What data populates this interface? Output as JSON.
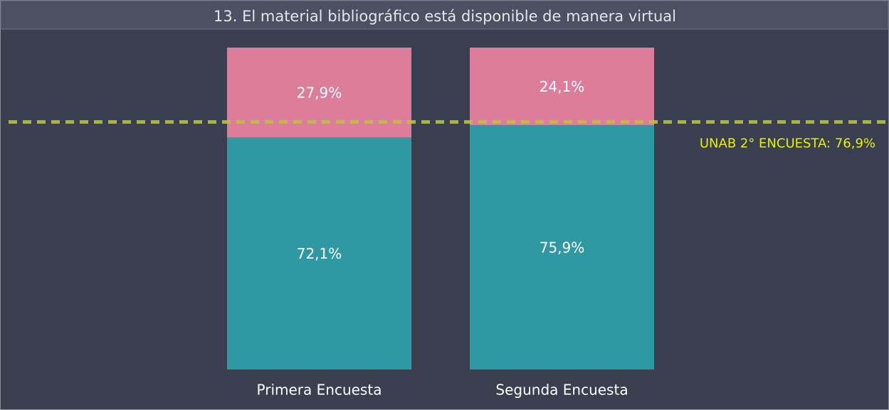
{
  "chart_data": {
    "type": "stacked-bar",
    "title": "13. El material bibliográfico está disponible de manera virtual",
    "categories": [
      "Primera Encuesta",
      "Segunda Encuesta"
    ],
    "series": [
      {
        "color": "#3098a3",
        "values": [
          72.1,
          75.9
        ],
        "value_labels": [
          "72,1%",
          "75,9%"
        ]
      },
      {
        "color": "#dc7d9c",
        "values": [
          27.9,
          24.1
        ],
        "value_labels": [
          "27,9%",
          "24,1%"
        ]
      }
    ],
    "ylim": [
      0,
      100
    ],
    "reference_line": {
      "value": 76.9,
      "label": "UNAB 2° ENCUESTA: 76,9%",
      "color": "#b9c434",
      "label_color": "#e6f000"
    }
  }
}
